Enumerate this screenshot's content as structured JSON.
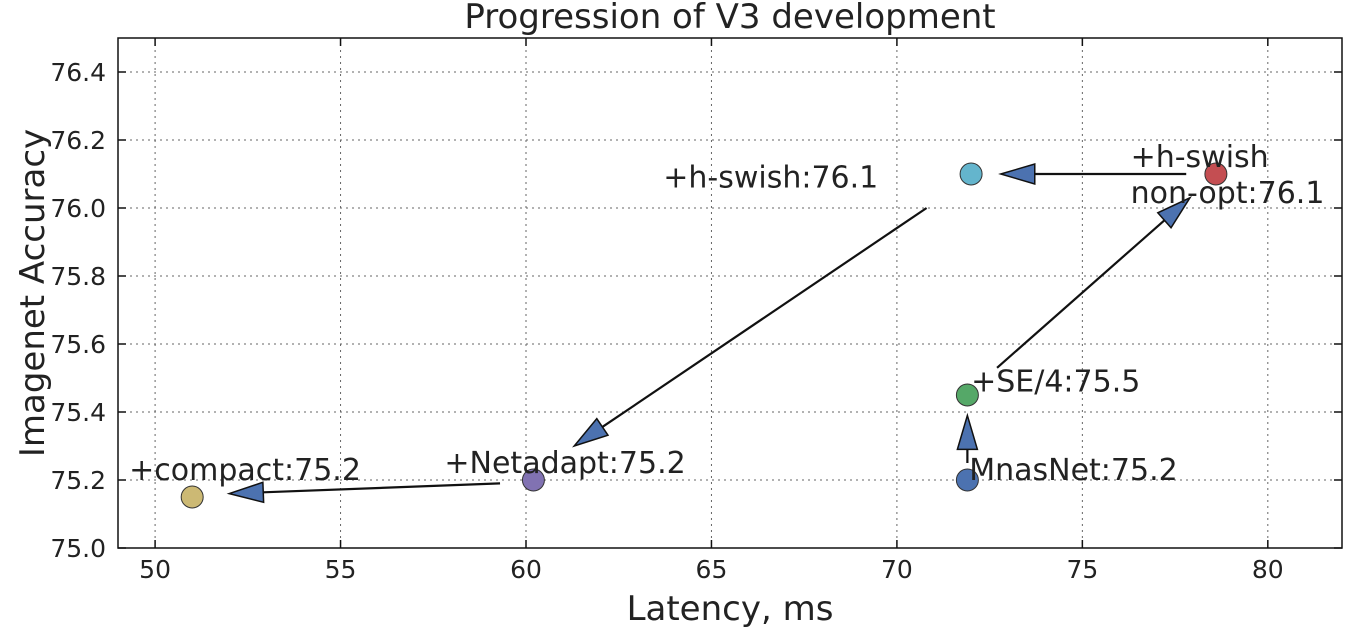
{
  "chart_data": {
    "type": "scatter",
    "title": "Progression of V3 development",
    "xlabel": "Latency, ms",
    "ylabel": "Imagenet Accuracy",
    "xlim": [
      49,
      82
    ],
    "ylim": [
      75.0,
      76.5
    ],
    "xticks": [
      50,
      55,
      60,
      65,
      70,
      75,
      80
    ],
    "yticks": [
      75.0,
      75.2,
      75.4,
      75.6,
      75.8,
      76.0,
      76.2,
      76.4
    ],
    "grid": true,
    "points": [
      {
        "label": "MnasNet:75.2",
        "x": 71.9,
        "y": 75.2,
        "color": "#4c72b0"
      },
      {
        "label": "+SE/4:75.5",
        "x": 71.9,
        "y": 75.45,
        "color": "#55a868"
      },
      {
        "label": "+h-swish non-opt:76.1",
        "x": 78.6,
        "y": 76.1,
        "color": "#c44e52"
      },
      {
        "label": "+h-swish:76.1",
        "x": 72.0,
        "y": 76.1,
        "color": "#64b5cd"
      },
      {
        "label": "+Netadapt:75.2",
        "x": 60.2,
        "y": 75.2,
        "color": "#8172b2"
      },
      {
        "label": "+compact:75.2",
        "x": 51.0,
        "y": 75.15,
        "color": "#ccb974"
      }
    ],
    "annotations": [
      {
        "lines": [
          "MnasNet:75.2"
        ],
        "x": 71.95,
        "y": 75.2
      },
      {
        "lines": [
          "+SE/4:75.5"
        ],
        "x": 72.0,
        "y": 75.46
      },
      {
        "lines": [
          "+h-swish",
          "non-opt:76.1"
        ],
        "x": 76.3,
        "y": 76.12
      },
      {
        "lines": [
          "+h-swish:76.1"
        ],
        "x": 63.7,
        "y": 76.06
      },
      {
        "lines": [
          "+Netadapt:75.2"
        ],
        "x": 57.8,
        "y": 75.22
      },
      {
        "lines": [
          "+compact:75.2"
        ],
        "x": 49.3,
        "y": 75.2
      }
    ],
    "arrows": [
      {
        "from": [
          71.9,
          75.25
        ],
        "to": [
          71.9,
          75.39
        ]
      },
      {
        "from": [
          72.7,
          75.53
        ],
        "to": [
          77.9,
          76.03
        ]
      },
      {
        "from": [
          77.8,
          76.1
        ],
        "to": [
          72.8,
          76.1
        ]
      },
      {
        "from": [
          70.8,
          76.0
        ],
        "to": [
          61.3,
          75.3
        ]
      },
      {
        "from": [
          59.3,
          75.19
        ],
        "to": [
          52.0,
          75.16
        ]
      }
    ]
  }
}
